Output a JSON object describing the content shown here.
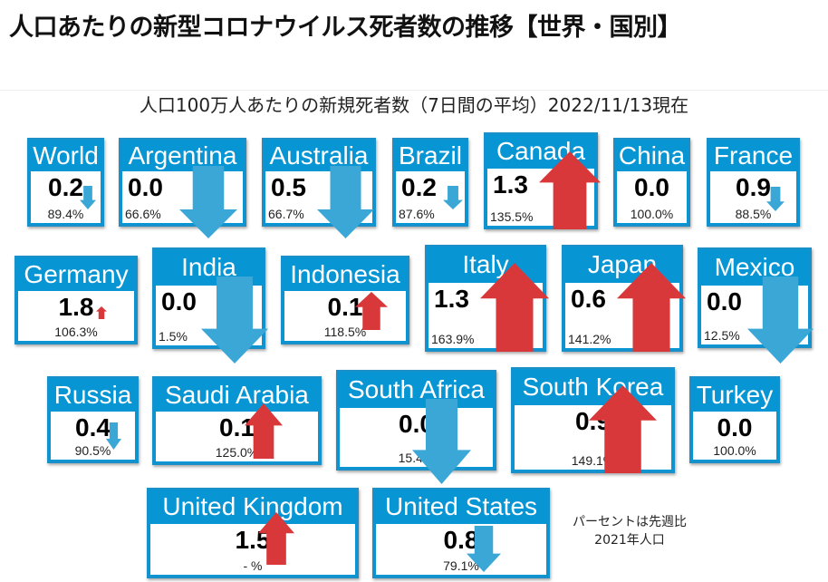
{
  "title": "人口あたりの新型コロナウイルス死者数の推移【世界・国別】",
  "subtitle": "人口100万人あたりの新規死者数（7日間の平均）2022/11/13現在",
  "note": {
    "line1": "パーセントは先週比",
    "line2": "2021年人口"
  },
  "colors": {
    "up": "#d9383a",
    "down": "#3aa7d6",
    "header": "#0895d4"
  },
  "cards": [
    {
      "name": "World",
      "value": "0.2",
      "pct": "89.4%",
      "trend": "down"
    },
    {
      "name": "Argentina",
      "value": "0.0",
      "pct": "66.6%",
      "trend": "down"
    },
    {
      "name": "Australia",
      "value": "0.5",
      "pct": "66.7%",
      "trend": "down"
    },
    {
      "name": "Brazil",
      "value": "0.2",
      "pct": "87.6%",
      "trend": "down"
    },
    {
      "name": "Canada",
      "value": "1.3",
      "pct": "135.5%",
      "trend": "up"
    },
    {
      "name": "China",
      "value": "0.0",
      "pct": "100.0%",
      "trend": "none"
    },
    {
      "name": "France",
      "value": "0.9",
      "pct": "88.5%",
      "trend": "down"
    },
    {
      "name": "Germany",
      "value": "1.8",
      "pct": "106.3%",
      "trend": "up"
    },
    {
      "name": "India",
      "value": "0.0",
      "pct": "1.5%",
      "trend": "down"
    },
    {
      "name": "Indonesia",
      "value": "0.1",
      "pct": "118.5%",
      "trend": "up"
    },
    {
      "name": "Italy",
      "value": "1.3",
      "pct": "163.9%",
      "trend": "up"
    },
    {
      "name": "Japan",
      "value": "0.6",
      "pct": "141.2%",
      "trend": "up"
    },
    {
      "name": "Mexico",
      "value": "0.0",
      "pct": "12.5%",
      "trend": "down"
    },
    {
      "name": "Russia",
      "value": "0.4",
      "pct": "90.5%",
      "trend": "down"
    },
    {
      "name": "Saudi Arabia",
      "value": "0.1",
      "pct": "125.0%",
      "trend": "up"
    },
    {
      "name": "South Africa",
      "value": "0.0",
      "pct": "15.4%",
      "trend": "down"
    },
    {
      "name": "South Korea",
      "value": "0.9",
      "pct": "149.1%",
      "trend": "up"
    },
    {
      "name": "Turkey",
      "value": "0.0",
      "pct": "100.0%",
      "trend": "none"
    },
    {
      "name": "United Kingdom",
      "value": "1.5",
      "pct": "- %",
      "trend": "up"
    },
    {
      "name": "United States",
      "value": "0.8",
      "pct": "79.1%",
      "trend": "down"
    }
  ]
}
